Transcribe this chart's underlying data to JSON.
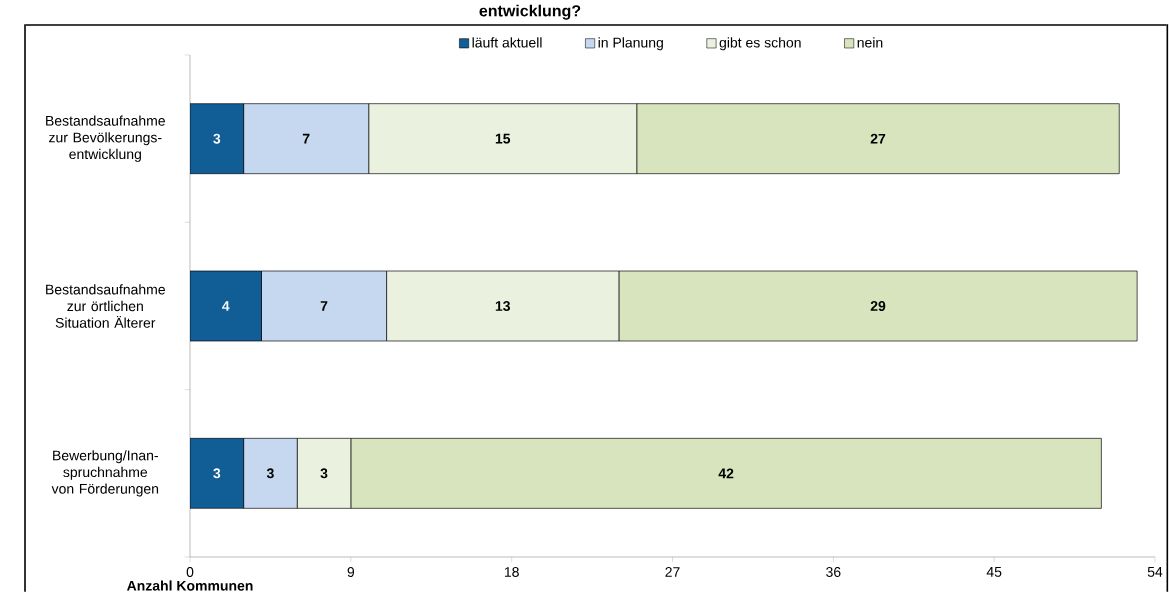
{
  "chart_data": {
    "type": "bar",
    "orientation": "horizontal",
    "stacked": true,
    "title": "entwicklung?",
    "categories": [
      "Bestandsaufnahme zur Bevölkerungs-entwicklung",
      "Bestandsaufnahme zur örtlichen Situation Älterer",
      "Bewerbung/Inan-spruchnahme von Förderungen"
    ],
    "series": [
      {
        "name": "läuft aktuell",
        "color": "#115d96",
        "values": [
          3,
          4,
          3
        ]
      },
      {
        "name": "in Planung",
        "color": "#c6d8ef",
        "values": [
          7,
          7,
          3
        ]
      },
      {
        "name": "gibt es schon",
        "color": "#ebf1df",
        "values": [
          15,
          13,
          3
        ]
      },
      {
        "name": "nein",
        "color": "#d7e4bd",
        "values": [
          27,
          29,
          42
        ]
      }
    ],
    "xlabel": "Anzahl Kommunen",
    "xlim": [
      0,
      54
    ],
    "xticks": [
      0,
      9,
      18,
      27,
      36,
      45,
      54
    ],
    "data_labels": true,
    "legend": "top",
    "grid": false
  }
}
